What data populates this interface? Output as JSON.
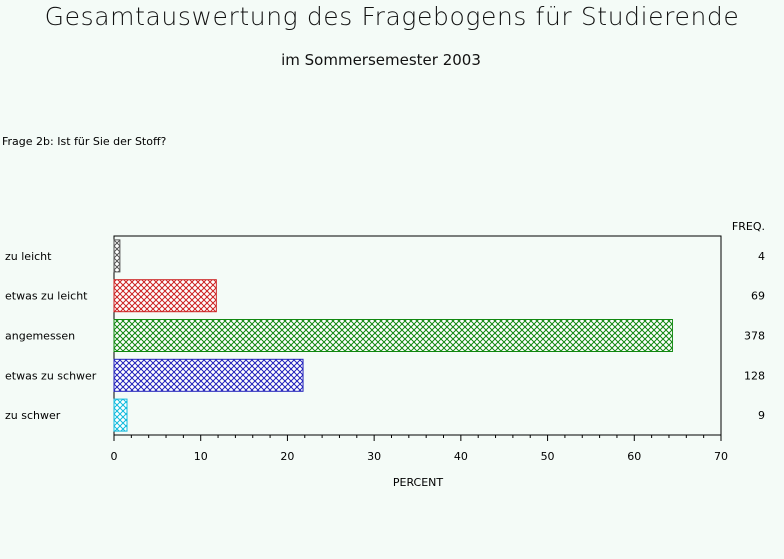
{
  "title": "Gesamtauswertung des Fragebogens für Studierende",
  "subtitle": "im Sommersemester 2003",
  "question": "Frage 2b: Ist für Sie der Stoff?",
  "chart_data": {
    "type": "bar",
    "orientation": "horizontal",
    "categories": [
      "zu leicht",
      "etwas zu leicht",
      "angemessen",
      "etwas zu schwer",
      "zu schwer"
    ],
    "values": [
      0.68,
      11.8,
      64.4,
      21.8,
      1.5
    ],
    "freq": [
      4,
      69,
      378,
      128,
      9
    ],
    "freq_label": "FREQ.",
    "xlabel": "PERCENT",
    "xlim": [
      0,
      70
    ],
    "xticks": [
      0,
      10,
      20,
      30,
      40,
      50,
      60,
      70
    ],
    "colors": [
      "#555555",
      "#cc2222",
      "#118811",
      "#2222bb",
      "#11bbdd"
    ],
    "grid": false
  }
}
